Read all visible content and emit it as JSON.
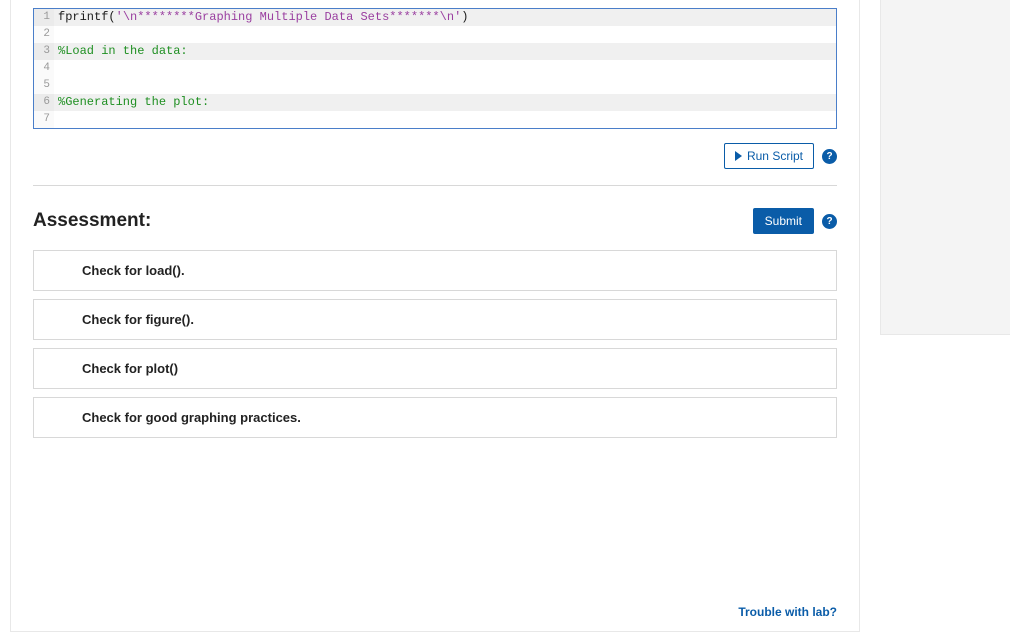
{
  "code": {
    "lines": [
      {
        "n": 1,
        "alt": true,
        "segments": [
          {
            "cls": "tk-fn",
            "t": "fprintf"
          },
          {
            "cls": "tk-paren",
            "t": "("
          },
          {
            "cls": "tk-str",
            "t": "'\\n********Graphing Multiple Data Sets*******\\n'"
          },
          {
            "cls": "tk-paren",
            "t": ")"
          }
        ]
      },
      {
        "n": 2,
        "alt": false,
        "segments": []
      },
      {
        "n": 3,
        "alt": true,
        "segments": [
          {
            "cls": "tk-cmt",
            "t": "%Load in the data:"
          }
        ]
      },
      {
        "n": 4,
        "alt": false,
        "segments": []
      },
      {
        "n": 5,
        "alt": false,
        "segments": []
      },
      {
        "n": 6,
        "alt": true,
        "segments": [
          {
            "cls": "tk-cmt",
            "t": "%Generating the plot:"
          }
        ]
      },
      {
        "n": 7,
        "alt": false,
        "segments": []
      }
    ]
  },
  "run": {
    "label": "Run Script",
    "help": "?"
  },
  "assessment": {
    "title": "Assessment:",
    "submit_label": "Submit",
    "help": "?",
    "checks": [
      "Check for load().",
      "Check for figure().",
      "Check for plot()",
      "Check for good graphing practices."
    ]
  },
  "footer": {
    "trouble_label": "Trouble with lab?"
  }
}
